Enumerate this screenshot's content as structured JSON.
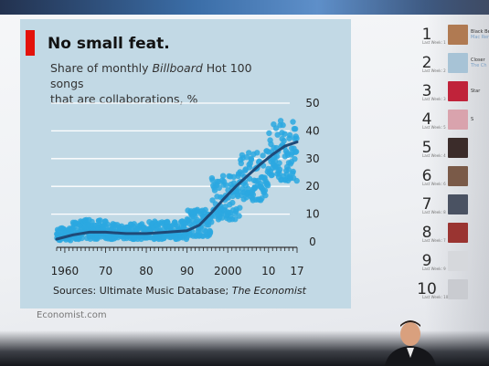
{
  "chart_card": {
    "title": "No small feat.",
    "subtitle_line1_prefix": "Share of monthly ",
    "subtitle_line1_italic": "Billboard",
    "subtitle_line1_suffix": " Hot 100 songs",
    "subtitle_line2": "that are collaborations, %",
    "source_prefix": "Sources: Ultimate Music Database; ",
    "source_italic": "The Economist",
    "footer": "Economist.com"
  },
  "colors": {
    "card_background": "#c2d9e5",
    "accent_red": "#e3120b",
    "scatter_points": "#2ba8e0",
    "trend_line": "#1f4a78",
    "gridlines": "#ffffff"
  },
  "chart_data": {
    "type": "scatter",
    "title": "No small feat.",
    "ylabel": "Share of monthly Billboard Hot 100 songs that are collaborations, %",
    "xlim": [
      1958,
      2017
    ],
    "ylim": [
      0,
      50
    ],
    "y_axis_side": "right",
    "x_tick_labels": [
      {
        "value": 1960,
        "label": "1960"
      },
      {
        "value": 1970,
        "label": "70"
      },
      {
        "value": 1980,
        "label": "80"
      },
      {
        "value": 1990,
        "label": "90"
      },
      {
        "value": 2000,
        "label": "2000"
      },
      {
        "value": 2010,
        "label": "10"
      },
      {
        "value": 2017,
        "label": "17"
      }
    ],
    "y_tick_labels": [
      {
        "value": 0,
        "label": "0"
      },
      {
        "value": 10,
        "label": "10"
      },
      {
        "value": 20,
        "label": "20"
      },
      {
        "value": 30,
        "label": "30"
      },
      {
        "value": 40,
        "label": "40"
      },
      {
        "value": 50,
        "label": "50"
      }
    ],
    "grid": true,
    "trend": {
      "x": [
        1958,
        1962,
        1966,
        1970,
        1975,
        1980,
        1985,
        1990,
        1993,
        1996,
        1999,
        2002,
        2005,
        2008,
        2011,
        2014,
        2017
      ],
      "y": [
        1.0,
        2.5,
        3.5,
        3.5,
        3.0,
        3.0,
        3.5,
        4.0,
        6.0,
        10.5,
        15.5,
        20.0,
        24.0,
        28.0,
        31.5,
        34.5,
        36.0
      ]
    },
    "point_series": [
      {
        "x_start": 1958.0,
        "x_end": 1962.0,
        "y_min": 0.5,
        "y_max": 5.0,
        "n": 48
      },
      {
        "x_start": 1962.0,
        "x_end": 1970.0,
        "y_min": 1.0,
        "y_max": 8.0,
        "n": 100
      },
      {
        "x_start": 1970.0,
        "x_end": 1980.0,
        "y_min": 1.0,
        "y_max": 6.5,
        "n": 120
      },
      {
        "x_start": 1980.0,
        "x_end": 1990.0,
        "y_min": 1.0,
        "y_max": 7.5,
        "n": 120
      },
      {
        "x_start": 1990.0,
        "x_end": 1996.0,
        "y_min": 2.0,
        "y_max": 12.0,
        "n": 72
      },
      {
        "x_start": 1996.0,
        "x_end": 2003.0,
        "y_min": 8.0,
        "y_max": 25.0,
        "n": 84
      },
      {
        "x_start": 2003.0,
        "x_end": 2010.0,
        "y_min": 15.0,
        "y_max": 33.0,
        "n": 84
      },
      {
        "x_start": 2010.0,
        "x_end": 2017.0,
        "y_min": 22.0,
        "y_max": 44.0,
        "n": 84
      }
    ]
  },
  "ranking": [
    {
      "rank": "1",
      "sub": "Last Week: 1",
      "title": "Black Be",
      "artist": "Mac Rema",
      "thumb": "#b07a52"
    },
    {
      "rank": "2",
      "sub": "Last Week: 2",
      "title": "Closer",
      "artist": "The Ch",
      "thumb": "#a7c3d6"
    },
    {
      "rank": "3",
      "sub": "Last Week: 3",
      "title": "Star",
      "artist": "",
      "thumb": "#c0233a"
    },
    {
      "rank": "4",
      "sub": "Last Week: 5",
      "title": "S",
      "artist": "",
      "thumb": "#d9a3ad"
    },
    {
      "rank": "5",
      "sub": "Last Week: 4",
      "title": "",
      "artist": "",
      "thumb": "#3b2c2a"
    },
    {
      "rank": "6",
      "sub": "Last Week: 6",
      "title": "",
      "artist": "",
      "thumb": "#7a5a48"
    },
    {
      "rank": "7",
      "sub": "Last Week: 8",
      "title": "",
      "artist": "",
      "thumb": "#4a5262"
    },
    {
      "rank": "8",
      "sub": "Last Week: 7",
      "title": "",
      "artist": "",
      "thumb": "#9a3431"
    },
    {
      "rank": "9",
      "sub": "Last Week: 9",
      "title": "",
      "artist": "",
      "thumb": "#d6d8dc"
    },
    {
      "rank": "10",
      "sub": "Last Week: 10",
      "title": "",
      "artist": "",
      "thumb": "#c9cbd0"
    }
  ]
}
